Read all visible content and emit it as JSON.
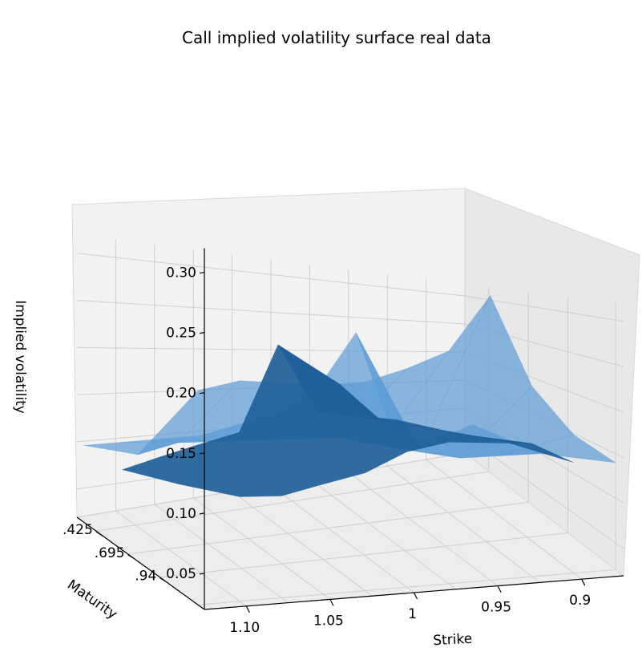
{
  "chart_data": {
    "type": "surface3d",
    "title": "Call implied volatility surface real data",
    "xlabel": "Strike",
    "ylabel": "Maturity",
    "zlabel": "Implied volatility",
    "x_ticks": [
      "1.10",
      "1.05",
      "1",
      "0.95",
      "0.9"
    ],
    "y_ticks": [
      ".425",
      ".695",
      ".94"
    ],
    "z_ticks": [
      "0.05",
      "0.10",
      "0.15",
      "0.20",
      "0.25",
      "0.30"
    ],
    "zlim": [
      0.02,
      0.32
    ],
    "series": [
      {
        "name": "",
        "color": "#5b9bd5",
        "opacity": 0.7,
        "x": [
          1.125,
          1.1,
          1.075,
          1.05,
          1.025,
          1.0,
          0.975,
          0.95,
          0.925,
          0.9,
          0.875
        ],
        "maturity": [
          0.425,
          0.695,
          0.94
        ],
        "z": [
          [
            0.2,
            0.21,
            0.21,
            0.21,
            0.215,
            0.23,
            0.25,
            0.31,
            0.22,
            0.17,
            0.14
          ],
          [
            0.12,
            0.13,
            0.13,
            0.13,
            0.13,
            0.13,
            0.12,
            0.11,
            0.1,
            0.1,
            0.1
          ],
          [
            0.1,
            0.1,
            0.1,
            0.1,
            0.11,
            0.12,
            0.15,
            0.23,
            0.07,
            0.06,
            0.08
          ]
        ]
      },
      {
        "name": "",
        "color": "#1f5f99",
        "opacity": 0.92,
        "x": [
          1.1,
          1.075,
          1.05,
          1.025,
          1.0,
          0.975,
          0.95,
          0.925,
          0.9
        ],
        "maturity": [
          0.425,
          0.695,
          0.94
        ],
        "z": [
          [
            0.11,
            0.11,
            0.12,
            0.13,
            0.15,
            0.16,
            0.16,
            0.16,
            0.14
          ],
          [
            0.09,
            0.1,
            0.11,
            0.13,
            0.19,
            0.15,
            0.14,
            0.13,
            0.12
          ],
          [
            0.07,
            0.08,
            0.09,
            0.1,
            0.21,
            0.12,
            0.11,
            0.1,
            0.08
          ]
        ]
      }
    ]
  }
}
